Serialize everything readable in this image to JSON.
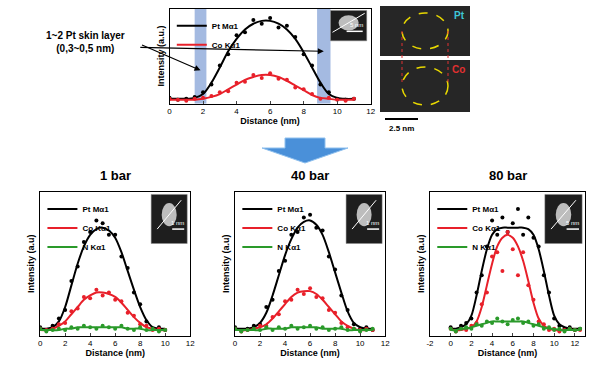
{
  "chart_data": [
    {
      "type": "line",
      "x_label": "Distance (nm)",
      "y_label": "Intensity (a.u.)",
      "xlim": [
        0,
        12
      ],
      "xticks": [
        0,
        2,
        4,
        6,
        8,
        10,
        12
      ],
      "ylim": [
        0,
        1
      ],
      "tick_labels": "x",
      "grid": false,
      "legend": "upper left",
      "x": [
        0,
        0.5,
        1,
        1.5,
        2,
        2.5,
        3,
        3.5,
        4,
        4.5,
        5,
        5.5,
        6,
        6.5,
        7,
        7.5,
        8,
        8.5,
        9,
        9.5,
        10,
        10.5,
        11
      ],
      "series": [
        {
          "name": "Pt Mα1",
          "color": "#000000",
          "marker": "circle",
          "values": [
            0.06,
            0.04,
            0.05,
            0.07,
            0.12,
            0.2,
            0.4,
            0.52,
            0.72,
            0.75,
            0.88,
            0.84,
            0.9,
            0.8,
            0.82,
            0.7,
            0.52,
            0.4,
            0.2,
            0.12,
            0.05,
            0.04,
            0.05
          ],
          "fit": [
            0.05,
            0.05,
            0.05,
            0.06,
            0.1,
            0.22,
            0.38,
            0.55,
            0.68,
            0.78,
            0.84,
            0.87,
            0.87,
            0.84,
            0.78,
            0.68,
            0.54,
            0.38,
            0.22,
            0.1,
            0.06,
            0.05,
            0.05
          ]
        },
        {
          "name": "Co Kα1",
          "color": "#e8202a",
          "marker": "circle",
          "values": [
            0.05,
            0.04,
            0.03,
            0.05,
            0.06,
            0.08,
            0.12,
            0.13,
            0.22,
            0.23,
            0.3,
            0.27,
            0.32,
            0.26,
            0.25,
            0.17,
            0.15,
            0.1,
            0.05,
            0.06,
            0.04,
            0.03,
            0.05
          ],
          "fit": [
            0.04,
            0.04,
            0.04,
            0.04,
            0.05,
            0.07,
            0.1,
            0.15,
            0.2,
            0.25,
            0.28,
            0.3,
            0.3,
            0.28,
            0.24,
            0.19,
            0.14,
            0.09,
            0.06,
            0.05,
            0.04,
            0.04,
            0.04
          ]
        }
      ],
      "highlight_ranges": [
        [
          1.5,
          2.2
        ],
        [
          8.8,
          9.6
        ]
      ],
      "annotations": [
        "1~2 Pt skin layer",
        "(0,3~0,5 nm)"
      ],
      "inset_label": "5 nm",
      "maps": {
        "labels": [
          {
            "text": "Pt",
            "color": "#3ec8d8"
          },
          {
            "text": "Co",
            "color": "#e03030"
          }
        ],
        "scale_bar": "2.5 nm"
      }
    },
    {
      "type": "line",
      "title": "1 bar",
      "x_label": "Distance (nm)",
      "y_label": "Intensity (a.u)",
      "xlim": [
        0,
        12
      ],
      "xticks": [
        0,
        2,
        4,
        6,
        8,
        10,
        12
      ],
      "ylim": [
        0,
        1
      ],
      "tick_labels": "x",
      "grid": false,
      "legend": "upper left",
      "x": [
        0,
        0.5,
        1,
        1.5,
        2,
        2.5,
        3,
        3.5,
        4,
        4.5,
        5,
        5.5,
        6,
        6.5,
        7,
        7.5,
        8,
        8.5,
        9,
        9.5,
        10
      ],
      "series": [
        {
          "name": "Pt Mα1",
          "color": "#000000",
          "marker": "circle",
          "values": [
            0.06,
            0.04,
            0.07,
            0.12,
            0.18,
            0.38,
            0.48,
            0.65,
            0.72,
            0.8,
            0.78,
            0.7,
            0.7,
            0.55,
            0.47,
            0.3,
            0.22,
            0.1,
            0.05,
            0.06,
            0.04
          ],
          "fit": [
            0.05,
            0.05,
            0.06,
            0.1,
            0.2,
            0.35,
            0.5,
            0.62,
            0.7,
            0.74,
            0.75,
            0.73,
            0.68,
            0.58,
            0.45,
            0.32,
            0.2,
            0.11,
            0.06,
            0.05,
            0.05
          ]
        },
        {
          "name": "Co Kα1",
          "color": "#e8202a",
          "marker": "circle",
          "values": [
            0.05,
            0.04,
            0.05,
            0.08,
            0.09,
            0.17,
            0.19,
            0.27,
            0.26,
            0.32,
            0.28,
            0.3,
            0.25,
            0.24,
            0.16,
            0.14,
            0.08,
            0.07,
            0.04,
            0.05,
            0.04
          ],
          "fit": [
            0.04,
            0.04,
            0.05,
            0.07,
            0.1,
            0.15,
            0.2,
            0.25,
            0.28,
            0.3,
            0.3,
            0.29,
            0.27,
            0.23,
            0.18,
            0.13,
            0.09,
            0.06,
            0.05,
            0.04,
            0.04
          ]
        },
        {
          "name": "N Kα1",
          "color": "#2a9a2a",
          "marker": "circle",
          "values": [
            0.05,
            0.03,
            0.04,
            0.05,
            0.04,
            0.06,
            0.05,
            0.07,
            0.06,
            0.05,
            0.07,
            0.06,
            0.05,
            0.07,
            0.05,
            0.04,
            0.06,
            0.04,
            0.05,
            0.03,
            0.04
          ],
          "fit": [
            0.04,
            0.04,
            0.04,
            0.04,
            0.05,
            0.05,
            0.06,
            0.06,
            0.06,
            0.06,
            0.06,
            0.06,
            0.06,
            0.06,
            0.05,
            0.05,
            0.05,
            0.04,
            0.04,
            0.04,
            0.04
          ]
        }
      ],
      "inset_label": "1 nm"
    },
    {
      "type": "line",
      "title": "40 bar",
      "x_label": "Distance (nm)",
      "y_label": "Intensity (a.u)",
      "xlim": [
        0,
        12
      ],
      "xticks": [
        0,
        2,
        4,
        6,
        8,
        10,
        12
      ],
      "ylim": [
        0,
        1
      ],
      "tick_labels": "x",
      "grid": false,
      "legend": "upper left",
      "x": [
        0,
        0.5,
        1,
        1.5,
        2,
        2.5,
        3,
        3.5,
        4,
        4.5,
        5,
        5.5,
        6,
        6.5,
        7,
        7.5,
        8,
        8.5,
        9,
        9.5,
        10,
        10.5,
        11
      ],
      "series": [
        {
          "name": "Pt Mα1",
          "color": "#000000",
          "marker": "circle",
          "values": [
            0.06,
            0.04,
            0.05,
            0.07,
            0.08,
            0.2,
            0.25,
            0.45,
            0.52,
            0.7,
            0.72,
            0.82,
            0.84,
            0.75,
            0.73,
            0.55,
            0.46,
            0.28,
            0.18,
            0.08,
            0.05,
            0.06,
            0.04
          ],
          "fit": [
            0.05,
            0.05,
            0.05,
            0.06,
            0.09,
            0.16,
            0.28,
            0.42,
            0.56,
            0.67,
            0.75,
            0.79,
            0.8,
            0.77,
            0.7,
            0.58,
            0.44,
            0.3,
            0.17,
            0.09,
            0.06,
            0.05,
            0.05
          ]
        },
        {
          "name": "Co Kα1",
          "color": "#e8202a",
          "marker": "circle",
          "values": [
            0.05,
            0.03,
            0.04,
            0.05,
            0.07,
            0.07,
            0.13,
            0.15,
            0.24,
            0.25,
            0.32,
            0.29,
            0.33,
            0.27,
            0.26,
            0.18,
            0.16,
            0.09,
            0.06,
            0.05,
            0.04,
            0.05,
            0.04
          ],
          "fit": [
            0.04,
            0.04,
            0.04,
            0.05,
            0.06,
            0.08,
            0.12,
            0.17,
            0.22,
            0.27,
            0.3,
            0.31,
            0.31,
            0.29,
            0.25,
            0.2,
            0.15,
            0.1,
            0.07,
            0.05,
            0.04,
            0.04,
            0.04
          ]
        },
        {
          "name": "N Kα1",
          "color": "#2a9a2a",
          "marker": "circle",
          "values": [
            0.05,
            0.03,
            0.04,
            0.05,
            0.04,
            0.06,
            0.04,
            0.06,
            0.05,
            0.07,
            0.05,
            0.06,
            0.07,
            0.05,
            0.06,
            0.04,
            0.05,
            0.06,
            0.04,
            0.05,
            0.03,
            0.04,
            0.05
          ],
          "fit": [
            0.04,
            0.04,
            0.04,
            0.04,
            0.04,
            0.05,
            0.05,
            0.05,
            0.05,
            0.06,
            0.06,
            0.06,
            0.06,
            0.06,
            0.05,
            0.05,
            0.05,
            0.05,
            0.04,
            0.04,
            0.04,
            0.04,
            0.04
          ]
        }
      ],
      "inset_label": "1 nm"
    },
    {
      "type": "line",
      "title": "80 bar",
      "x_label": "Distance (nm)",
      "y_label": "Intensity (a.u)",
      "xlim": [
        -2,
        13
      ],
      "xticks": [
        -2,
        0,
        2,
        4,
        6,
        8,
        10,
        12
      ],
      "ylim": [
        0,
        1
      ],
      "tick_labels": "x",
      "grid": false,
      "legend": "upper left",
      "x": [
        0,
        0.5,
        1,
        1.5,
        2,
        2.5,
        3,
        3.5,
        4,
        4.5,
        5,
        5.5,
        6,
        6.5,
        7,
        7.5,
        8,
        8.5,
        9,
        9.5,
        10,
        10.5,
        11,
        11.5,
        12,
        12.5
      ],
      "series": [
        {
          "name": "Pt Mα1",
          "color": "#000000",
          "marker": "circle",
          "values": [
            0.06,
            0.04,
            0.07,
            0.09,
            0.12,
            0.3,
            0.42,
            0.62,
            0.8,
            0.7,
            0.82,
            0.72,
            0.78,
            0.88,
            0.7,
            0.82,
            0.68,
            0.62,
            0.42,
            0.3,
            0.12,
            0.07,
            0.05,
            0.06,
            0.04,
            0.05
          ],
          "fit": [
            0.05,
            0.05,
            0.06,
            0.08,
            0.14,
            0.28,
            0.45,
            0.6,
            0.7,
            0.74,
            0.75,
            0.75,
            0.75,
            0.75,
            0.75,
            0.74,
            0.7,
            0.6,
            0.45,
            0.28,
            0.14,
            0.08,
            0.06,
            0.05,
            0.05,
            0.05
          ]
        },
        {
          "name": "Co Kα1",
          "color": "#e8202a",
          "marker": "circle",
          "values": [
            0.05,
            0.03,
            0.05,
            0.04,
            0.07,
            0.09,
            0.22,
            0.3,
            0.55,
            0.58,
            0.45,
            0.72,
            0.6,
            0.42,
            0.58,
            0.35,
            0.25,
            0.1,
            0.08,
            0.04,
            0.05,
            0.03,
            0.04,
            0.05,
            0.04,
            0.04
          ],
          "fit": [
            0.04,
            0.04,
            0.04,
            0.05,
            0.06,
            0.1,
            0.2,
            0.35,
            0.5,
            0.62,
            0.68,
            0.7,
            0.68,
            0.62,
            0.52,
            0.38,
            0.23,
            0.12,
            0.07,
            0.05,
            0.04,
            0.04,
            0.04,
            0.04,
            0.04,
            0.04
          ]
        },
        {
          "name": "N Kα1",
          "color": "#2a9a2a",
          "marker": "circle",
          "values": [
            0.05,
            0.03,
            0.05,
            0.06,
            0.05,
            0.08,
            0.07,
            0.1,
            0.09,
            0.12,
            0.1,
            0.08,
            0.11,
            0.12,
            0.09,
            0.1,
            0.07,
            0.08,
            0.05,
            0.06,
            0.04,
            0.05,
            0.03,
            0.05,
            0.04,
            0.05
          ],
          "fit": [
            0.04,
            0.04,
            0.05,
            0.05,
            0.06,
            0.07,
            0.08,
            0.09,
            0.1,
            0.1,
            0.1,
            0.1,
            0.1,
            0.1,
            0.1,
            0.09,
            0.08,
            0.07,
            0.06,
            0.05,
            0.05,
            0.04,
            0.04,
            0.04,
            0.04,
            0.04
          ]
        }
      ],
      "inset_label": "5 nm"
    }
  ]
}
